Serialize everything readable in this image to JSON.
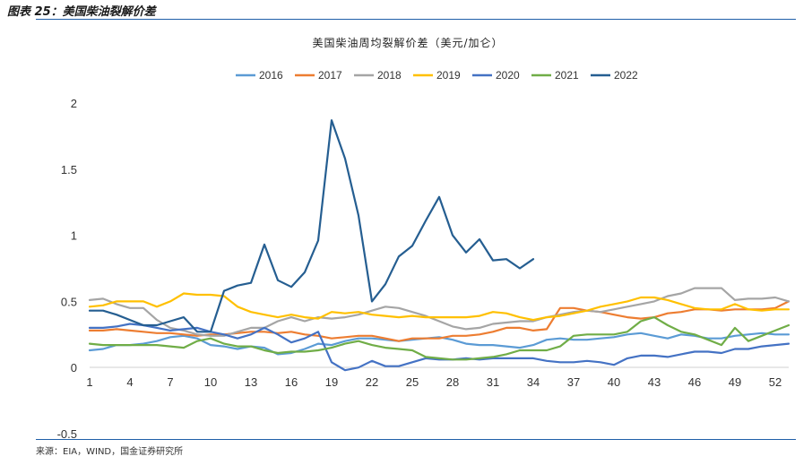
{
  "figure": {
    "title": "图表 25：美国柴油裂解价差",
    "source": "来源：EIA，WIND，国金证券研究所"
  },
  "chart_data": {
    "type": "line",
    "title": "美国柴油周均裂解价差（美元/加仑）",
    "legend_position": "top",
    "grid": false,
    "ylim": [
      -0.5,
      2
    ],
    "yticks": [
      2,
      1.5,
      1,
      0.5,
      0,
      -0.5
    ],
    "xlim": [
      1,
      53
    ],
    "xticks": [
      1,
      4,
      7,
      10,
      13,
      16,
      19,
      22,
      25,
      28,
      31,
      34,
      37,
      40,
      43,
      46,
      49,
      52
    ],
    "series": [
      {
        "name": "2016",
        "color": "#5b9bd5",
        "values": [
          0.13,
          0.14,
          0.17,
          0.17,
          0.18,
          0.2,
          0.23,
          0.24,
          0.22,
          0.17,
          0.16,
          0.14,
          0.16,
          0.15,
          0.1,
          0.11,
          0.14,
          0.18,
          0.17,
          0.2,
          0.22,
          0.22,
          0.21,
          0.2,
          0.21,
          0.22,
          0.23,
          0.21,
          0.18,
          0.17,
          0.17,
          0.16,
          0.15,
          0.17,
          0.21,
          0.22,
          0.21,
          0.21,
          0.22,
          0.23,
          0.25,
          0.26,
          0.24,
          0.22,
          0.25,
          0.24,
          0.22,
          0.22,
          0.24,
          0.25,
          0.26,
          0.25,
          0.25
        ]
      },
      {
        "name": "2017",
        "color": "#ed7d31",
        "values": [
          0.28,
          0.28,
          0.29,
          0.28,
          0.27,
          0.26,
          0.26,
          0.25,
          0.24,
          0.25,
          0.25,
          0.26,
          0.27,
          0.27,
          0.26,
          0.27,
          0.25,
          0.24,
          0.22,
          0.23,
          0.24,
          0.24,
          0.22,
          0.2,
          0.22,
          0.22,
          0.22,
          0.24,
          0.24,
          0.25,
          0.27,
          0.3,
          0.3,
          0.28,
          0.29,
          0.45,
          0.45,
          0.43,
          0.42,
          0.4,
          0.38,
          0.37,
          0.38,
          0.41,
          0.42,
          0.44,
          0.44,
          0.43,
          0.44,
          0.44,
          0.44,
          0.45,
          0.5
        ]
      },
      {
        "name": "2018",
        "color": "#a5a5a5",
        "values": [
          0.51,
          0.52,
          0.48,
          0.45,
          0.45,
          0.36,
          0.3,
          0.28,
          0.25,
          0.24,
          0.24,
          0.27,
          0.3,
          0.3,
          0.35,
          0.38,
          0.35,
          0.38,
          0.37,
          0.38,
          0.4,
          0.43,
          0.46,
          0.45,
          0.42,
          0.39,
          0.35,
          0.31,
          0.29,
          0.3,
          0.33,
          0.34,
          0.35,
          0.35,
          0.38,
          0.4,
          0.42,
          0.43,
          0.42,
          0.44,
          0.46,
          0.48,
          0.5,
          0.54,
          0.56,
          0.6,
          0.6,
          0.6,
          0.51,
          0.52,
          0.52,
          0.53,
          0.5
        ]
      },
      {
        "name": "2019",
        "color": "#ffc000",
        "values": [
          0.46,
          0.47,
          0.5,
          0.5,
          0.5,
          0.46,
          0.5,
          0.56,
          0.55,
          0.55,
          0.54,
          0.46,
          0.42,
          0.4,
          0.38,
          0.4,
          0.38,
          0.37,
          0.42,
          0.41,
          0.42,
          0.4,
          0.39,
          0.38,
          0.39,
          0.38,
          0.38,
          0.38,
          0.38,
          0.39,
          0.42,
          0.41,
          0.38,
          0.36,
          0.38,
          0.39,
          0.41,
          0.43,
          0.46,
          0.48,
          0.5,
          0.53,
          0.53,
          0.51,
          0.48,
          0.45,
          0.44,
          0.44,
          0.48,
          0.44,
          0.43,
          0.44,
          0.44
        ]
      },
      {
        "name": "2020",
        "color": "#4472c4",
        "values": [
          0.3,
          0.3,
          0.31,
          0.33,
          0.32,
          0.3,
          0.28,
          0.29,
          0.3,
          0.27,
          0.25,
          0.22,
          0.25,
          0.3,
          0.25,
          0.19,
          0.22,
          0.27,
          0.04,
          -0.02,
          0.0,
          0.05,
          0.01,
          0.01,
          0.04,
          0.07,
          0.06,
          0.06,
          0.07,
          0.06,
          0.07,
          0.07,
          0.07,
          0.07,
          0.05,
          0.04,
          0.04,
          0.05,
          0.04,
          0.02,
          0.07,
          0.09,
          0.09,
          0.08,
          0.1,
          0.12,
          0.12,
          0.11,
          0.14,
          0.14,
          0.16,
          0.17,
          0.18
        ]
      },
      {
        "name": "2021",
        "color": "#70ad47",
        "values": [
          0.18,
          0.17,
          0.17,
          0.17,
          0.17,
          0.17,
          0.16,
          0.15,
          0.2,
          0.22,
          0.18,
          0.16,
          0.16,
          0.13,
          0.11,
          0.12,
          0.12,
          0.13,
          0.15,
          0.18,
          0.2,
          0.17,
          0.15,
          0.14,
          0.13,
          0.08,
          0.07,
          0.06,
          0.06,
          0.07,
          0.08,
          0.1,
          0.13,
          0.13,
          0.13,
          0.16,
          0.24,
          0.25,
          0.25,
          0.25,
          0.27,
          0.35,
          0.38,
          0.32,
          0.27,
          0.25,
          0.21,
          0.17,
          0.3,
          0.2,
          0.24,
          0.28,
          0.32
        ]
      },
      {
        "name": "2022",
        "color": "#255e91",
        "values": [
          0.43,
          0.43,
          0.4,
          0.36,
          0.32,
          0.32,
          0.35,
          0.38,
          0.27,
          0.27,
          0.58,
          0.62,
          0.64,
          0.93,
          0.66,
          0.61,
          0.72,
          0.96,
          1.87,
          1.58,
          1.15,
          0.5,
          0.63,
          0.84,
          0.92,
          1.11,
          1.29,
          1.0,
          0.87,
          0.97,
          0.81,
          0.82,
          0.75,
          0.82
        ]
      }
    ]
  }
}
